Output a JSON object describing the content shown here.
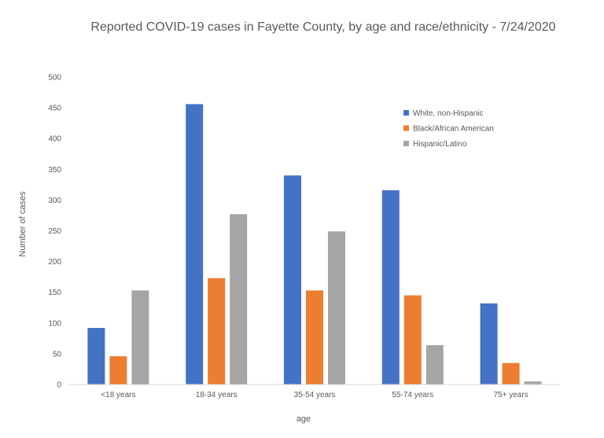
{
  "chart_data": {
    "type": "bar",
    "title": "Reported COVID-19 cases in Fayette County, by age and race/ethnicity - 7/24/2020",
    "xlabel": "age",
    "ylabel": "Number of cases",
    "categories": [
      "<18 years",
      "18-34 years",
      "35-54 years",
      "55-74 years",
      "75+ years"
    ],
    "series": [
      {
        "name": "White, non-Hispanic",
        "color": "#4472C4",
        "values": [
          92,
          456,
          340,
          316,
          132
        ]
      },
      {
        "name": "Black/African American",
        "color": "#ED7D31",
        "values": [
          46,
          173,
          153,
          145,
          35
        ]
      },
      {
        "name": "Hispanic/Latino",
        "color": "#A5A5A5",
        "values": [
          153,
          277,
          249,
          64,
          5
        ]
      }
    ],
    "ylim": [
      0,
      500
    ],
    "yticks": [
      "0",
      "50",
      "100",
      "150",
      "200",
      "250",
      "300",
      "350",
      "400",
      "450",
      "500"
    ],
    "grid": false,
    "legend_position": "top-right"
  }
}
